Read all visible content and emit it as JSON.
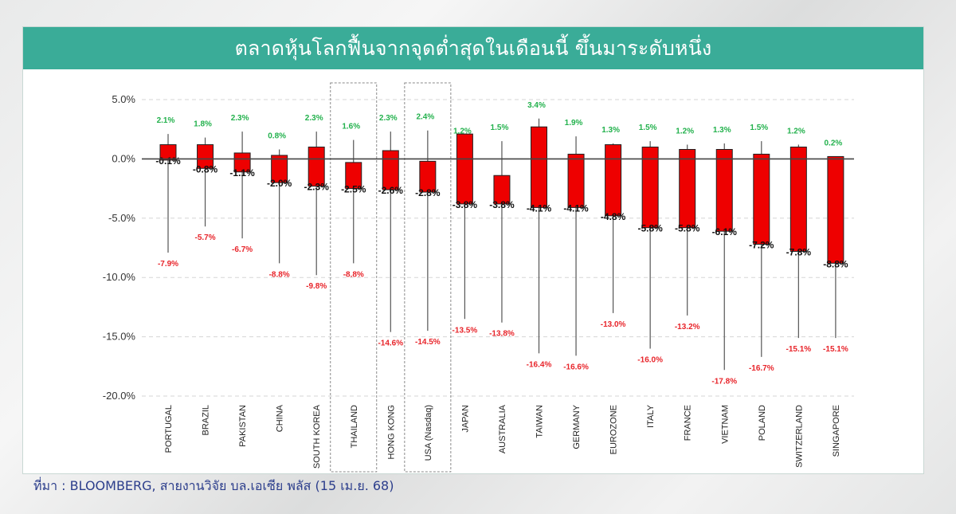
{
  "title": "ตลาดหุ้นโลกฟื้นจากจุดต่ำสุดในเดือนนี้ ขึ้นมาระดับหนึ่ง",
  "source": "ที่มา : BLOOMBERG, สายงานวิจัย บล.เอเซีย พลัส (15 เม.ย. 68)",
  "chart_data": {
    "type": "candlestick",
    "ylim": [
      -20,
      5
    ],
    "yticks": [
      5,
      0,
      -5,
      -10,
      -15,
      -20
    ],
    "ytick_labels": [
      "5.0%",
      "0.0%",
      "-5.0%",
      "-10.0%",
      "-15.0%",
      "-20.0%"
    ],
    "grid": true,
    "highlighted": [
      "THAILAND",
      "USA (Nasdaq)"
    ],
    "colors": {
      "body": "#ee0000",
      "high_label": "#22b14c",
      "low_label": "#e8242a",
      "close_label": "#111111",
      "wick": "#555555"
    },
    "categories": [
      "PORTUGAL",
      "BRAZIL",
      "PAKISTAN",
      "CHINA",
      "SOUTH KOREA",
      "THAILAND",
      "HONG KONG",
      "USA (Nasdaq)",
      "JAPAN",
      "AUSTRALIA",
      "TAIWAN",
      "GERMANY",
      "EUROZONE",
      "ITALY",
      "FRANCE",
      "VIETNAM",
      "POLAND",
      "SWITZERLAND",
      "SINGAPORE"
    ],
    "high": [
      2.1,
      1.8,
      2.3,
      0.8,
      2.3,
      1.6,
      2.3,
      2.4,
      1.2,
      1.5,
      3.4,
      1.9,
      1.3,
      1.5,
      1.2,
      1.3,
      1.5,
      1.2,
      0.2
    ],
    "high_labels": [
      "2.1%",
      "1.8%",
      "2.3%",
      "0.8%",
      "2.3%",
      "1.6%",
      "2.3%",
      "2.4%",
      "1.2%",
      "1.5%",
      "3.4%",
      "1.9%",
      "1.3%",
      "1.5%",
      "1.2%",
      "1.3%",
      "1.5%",
      "1.2%",
      "0.2%"
    ],
    "low": [
      -7.9,
      -5.7,
      -6.7,
      -8.8,
      -9.8,
      -8.8,
      -14.6,
      -14.5,
      -13.5,
      -13.8,
      -16.4,
      -16.6,
      -13.0,
      -16.0,
      -13.2,
      -17.8,
      -16.7,
      -15.1,
      -15.1
    ],
    "low_labels": [
      "-7.9%",
      "-5.7%",
      "-6.7%",
      "-8.8%",
      "-9.8%",
      "-8.8%",
      "-14.6%",
      "-14.5%",
      "-13.5%",
      "-13.8%",
      "-16.4%",
      "-16.6%",
      "-13.0%",
      "-16.0%",
      "-13.2%",
      "-17.8%",
      "-16.7%",
      "-15.1%",
      "-15.1%"
    ],
    "body_top": [
      1.2,
      1.2,
      0.5,
      0.3,
      1.0,
      -0.3,
      0.7,
      -0.2,
      2.1,
      -1.4,
      2.7,
      0.4,
      1.2,
      1.0,
      0.8,
      0.8,
      0.4,
      1.0,
      0.2
    ],
    "close": [
      -0.1,
      -0.8,
      -1.1,
      -2.0,
      -2.3,
      -2.5,
      -2.6,
      -2.8,
      -3.8,
      -3.8,
      -4.1,
      -4.1,
      -4.8,
      -5.8,
      -5.8,
      -6.1,
      -7.2,
      -7.8,
      -8.8
    ],
    "close_labels": [
      "-0.1%",
      "-0.8%",
      "-1.1%",
      "-2.0%",
      "-2.3%",
      "-2.5%",
      "-2.6%",
      "-2.8%",
      "-3.8%",
      "-3.8%",
      "-4.1%",
      "-4.1%",
      "-4.8%",
      "-5.8%",
      "-5.8%",
      "-6.1%",
      "-7.2%",
      "-7.8%",
      "-8.8%"
    ]
  }
}
